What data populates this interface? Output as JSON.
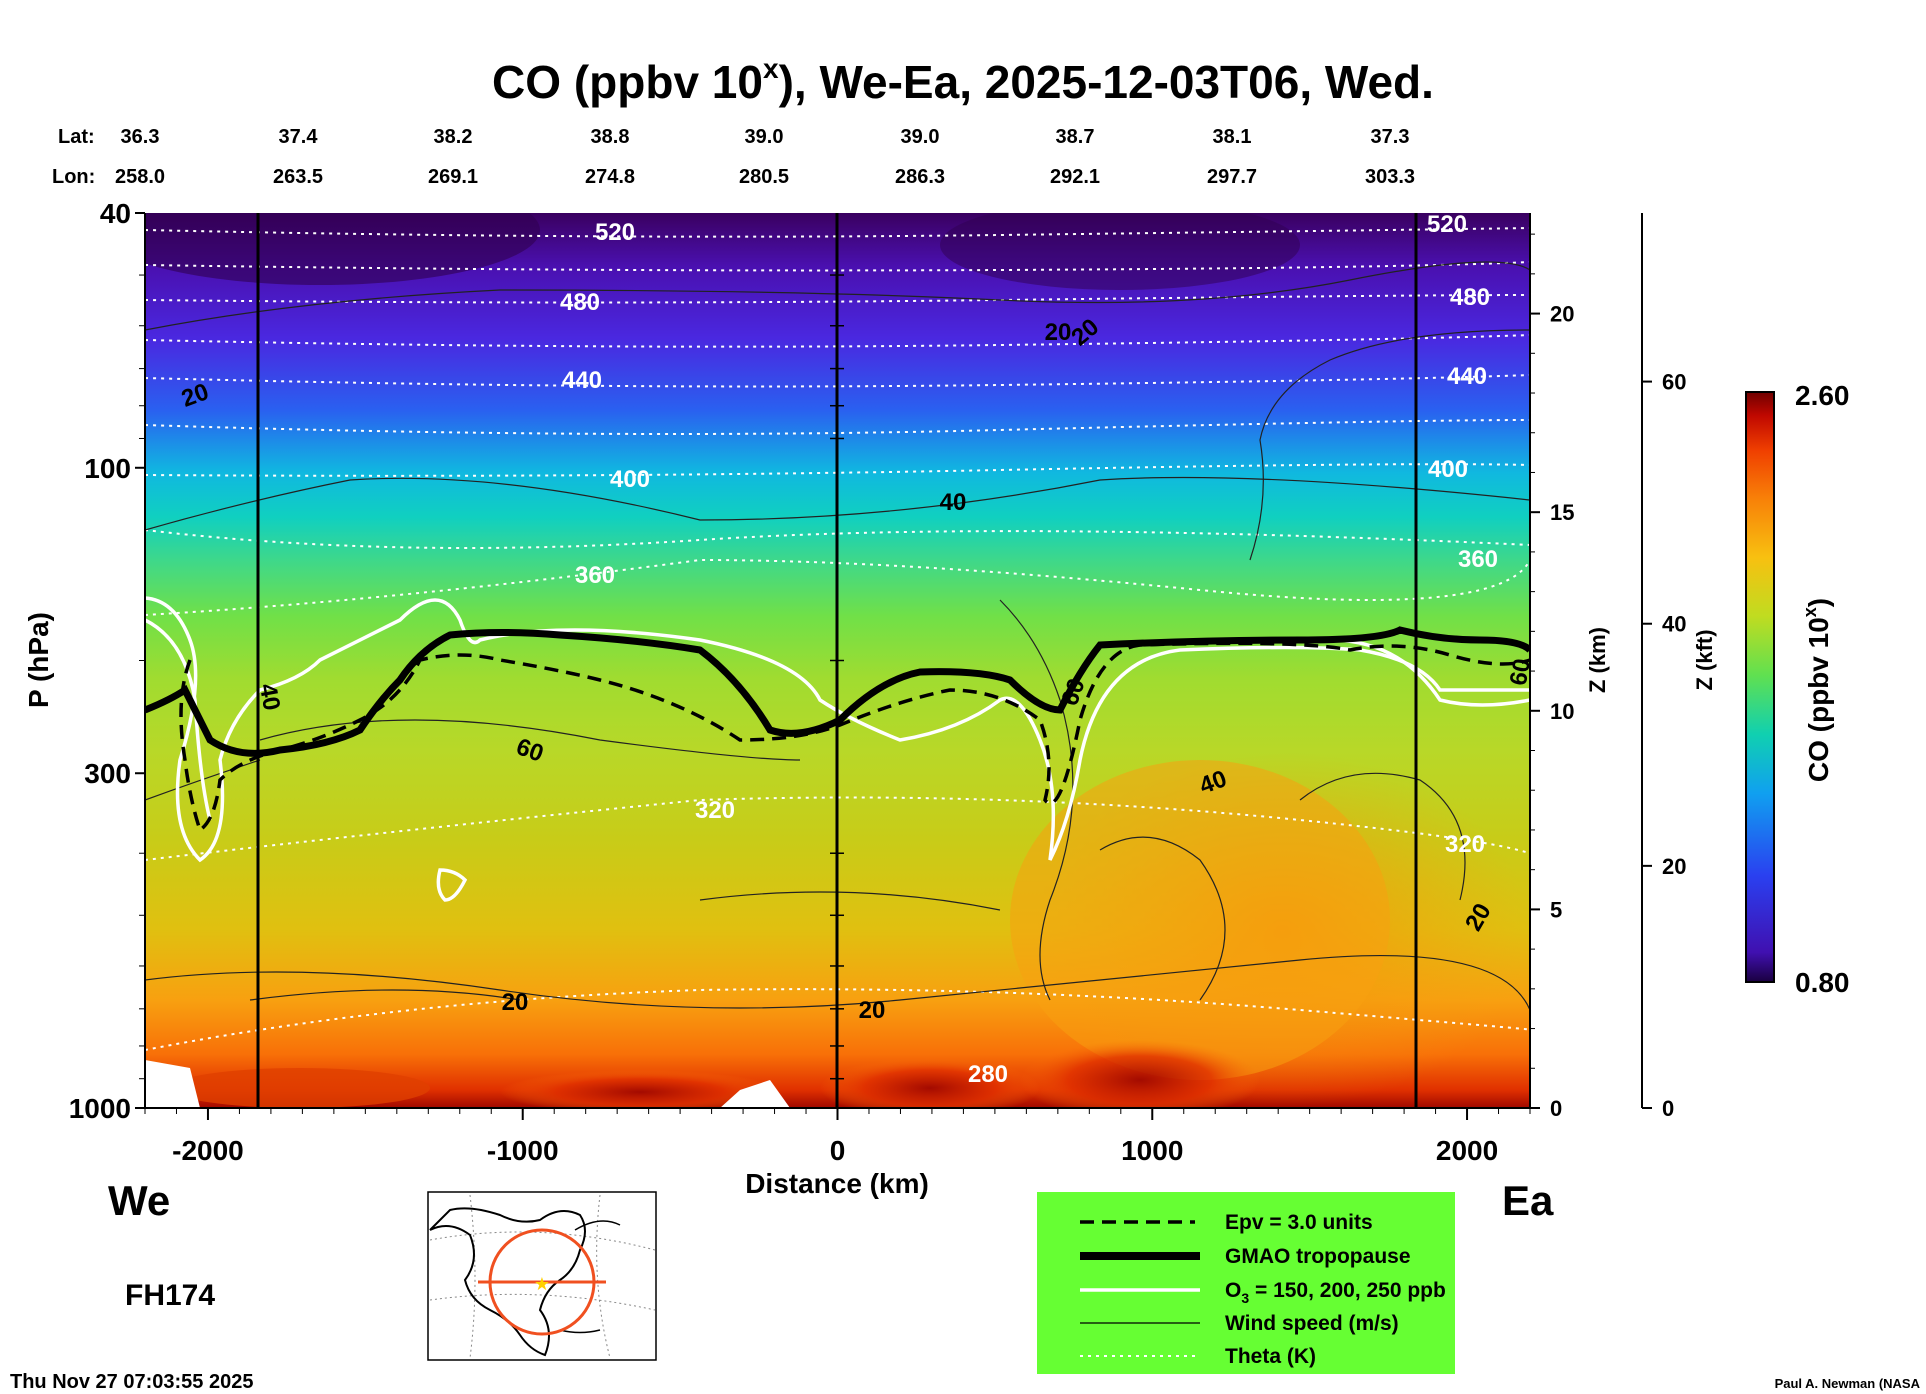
{
  "chart_data": {
    "type": "heatmap",
    "title": "CO (ppbv 10",
    "title_sup": "x",
    "title_rest": "), We-Ea, 2025-12-03T06, Wed.",
    "xlabel": "Distance (km)",
    "ylabel": "P (hPa)",
    "zlabel_km": "Z (km)",
    "zlabel_kft": "Z (kft)",
    "colorbar_label": "CO (ppbv 10",
    "colorbar_label_sup": "x",
    "colorbar_label_end": ")",
    "colorbar_max": "2.60",
    "colorbar_min": "0.80",
    "colorbar_colors": [
      "#3a0068",
      "#4b10c8",
      "#2a48ee",
      "#1a8ef0",
      "#10c8d8",
      "#20d8a0",
      "#60e050",
      "#a8e028",
      "#d8d818",
      "#f8c010",
      "#f89008",
      "#f05800",
      "#d82000",
      "#a00800",
      "#700000"
    ],
    "x_ticks": [
      "-2000",
      "-1000",
      "0",
      "1000",
      "2000"
    ],
    "x_range": [
      -2200,
      2200
    ],
    "p_ticks": [
      "40",
      "100",
      "300",
      "1000"
    ],
    "p_range": [
      1000,
      40
    ],
    "z_km_ticks": [
      "0",
      "5",
      "10",
      "15",
      "20"
    ],
    "z_kft_ticks": [
      "0",
      "20",
      "40",
      "60"
    ],
    "lat_label": "Lat:",
    "lon_label": "Lon:",
    "lats": [
      "36.3",
      "37.4",
      "38.2",
      "38.8",
      "39.0",
      "39.0",
      "38.7",
      "38.1",
      "37.3"
    ],
    "lons": [
      "258.0",
      "263.5",
      "269.1",
      "274.8",
      "280.5",
      "286.3",
      "292.1",
      "297.7",
      "303.3"
    ],
    "theta_labels": [
      "520",
      "480",
      "440",
      "400",
      "360",
      "320",
      "280",
      "520",
      "480",
      "440",
      "400",
      "360",
      "320"
    ],
    "wind_labels": [
      "20",
      "40",
      "60",
      "40",
      "20",
      "20",
      "60",
      "20",
      "40",
      "20",
      "20",
      "60"
    ],
    "co_field_note": "",
    "left_dir": "We",
    "right_dir": "Ea",
    "forecast_hour": "FH174",
    "timestamp": "Thu Nov 27 07:03:55 2025",
    "credit": "Paul A. Newman (NASA",
    "legend": [
      {
        "label": "Epv = 3.0 units",
        "style": "dashed-black"
      },
      {
        "label": "GMAO tropopause",
        "style": "thick-black"
      },
      {
        "label_pre": "O",
        "label_sub": "3",
        "label_post": " = 150, 200, 250 ppb",
        "style": "white"
      },
      {
        "label": "Wind speed (m/s)",
        "style": "thin-black"
      },
      {
        "label": "Theta (K)",
        "style": "dotted-white"
      }
    ],
    "legend_bg": "#66ff33",
    "map_inset": "map-inset"
  }
}
